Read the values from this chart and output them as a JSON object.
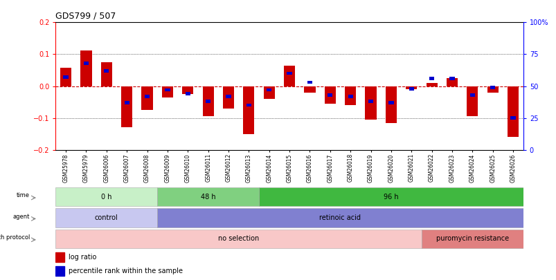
{
  "title": "GDS799 / 507",
  "samples": [
    "GSM25978",
    "GSM25979",
    "GSM26006",
    "GSM26007",
    "GSM26008",
    "GSM26009",
    "GSM26010",
    "GSM26011",
    "GSM26012",
    "GSM26013",
    "GSM26014",
    "GSM26015",
    "GSM26016",
    "GSM26017",
    "GSM26018",
    "GSM26019",
    "GSM26020",
    "GSM26021",
    "GSM26022",
    "GSM26023",
    "GSM26024",
    "GSM26025",
    "GSM26026"
  ],
  "log_ratio": [
    0.058,
    0.112,
    0.075,
    -0.13,
    -0.075,
    -0.035,
    -0.025,
    -0.095,
    -0.07,
    -0.15,
    -0.04,
    0.065,
    -0.02,
    -0.055,
    -0.06,
    -0.105,
    -0.115,
    -0.01,
    0.01,
    0.025,
    -0.095,
    -0.02,
    -0.16
  ],
  "percentile_rank": [
    0.57,
    0.68,
    0.62,
    0.37,
    0.42,
    0.47,
    0.44,
    0.38,
    0.42,
    0.35,
    0.47,
    0.6,
    0.53,
    0.43,
    0.42,
    0.38,
    0.37,
    0.48,
    0.56,
    0.56,
    0.43,
    0.49,
    0.25
  ],
  "time_groups": [
    {
      "label": "0 h",
      "start": 0,
      "end": 5,
      "color": "#c8f0c8"
    },
    {
      "label": "48 h",
      "start": 5,
      "end": 10,
      "color": "#80d080"
    },
    {
      "label": "96 h",
      "start": 10,
      "end": 23,
      "color": "#40b840"
    }
  ],
  "agent_groups": [
    {
      "label": "control",
      "start": 0,
      "end": 5,
      "color": "#c8c8f0"
    },
    {
      "label": "retinoic acid",
      "start": 5,
      "end": 23,
      "color": "#8080d0"
    }
  ],
  "growth_groups": [
    {
      "label": "no selection",
      "start": 0,
      "end": 18,
      "color": "#f8c8c8"
    },
    {
      "label": "puromycin resistance",
      "start": 18,
      "end": 23,
      "color": "#e08080"
    }
  ],
  "bar_color": "#cc0000",
  "blue_color": "#0000cc",
  "zero_line_color": "#cc0000",
  "grid_color": "#000000",
  "ylim_left": [
    -0.2,
    0.2
  ],
  "ylim_right": [
    0,
    100
  ],
  "yticks_left": [
    -0.2,
    -0.1,
    0.0,
    0.1,
    0.2
  ],
  "yticks_right": [
    0,
    25,
    50,
    75,
    100
  ],
  "ytick_labels_right": [
    "0",
    "25",
    "50",
    "75",
    "100%"
  ],
  "annotation_rows_order": [
    "time",
    "agent",
    "growth protocol"
  ],
  "legend_items": [
    {
      "label": "log ratio",
      "color": "#cc0000"
    },
    {
      "label": "percentile rank within the sample",
      "color": "#0000cc"
    }
  ]
}
